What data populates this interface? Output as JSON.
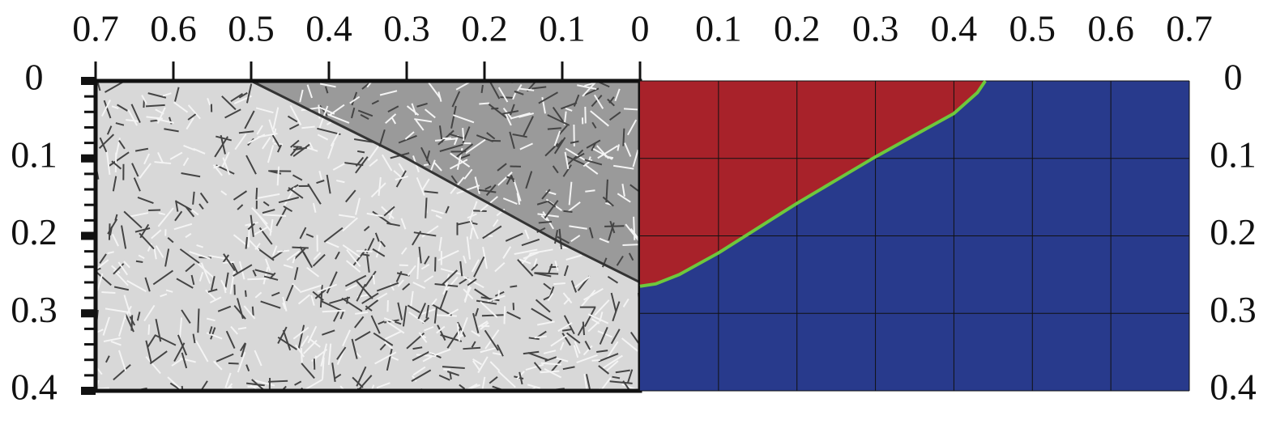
{
  "chart_data": [
    {
      "type": "micrograph",
      "xlim": [
        0.7,
        0
      ],
      "ylim": [
        0,
        0.4
      ],
      "xticks": [
        0.7,
        0.6,
        0.5,
        0.4,
        0.3,
        0.2,
        0.1,
        0
      ],
      "yticks": [
        0,
        0.1,
        0.2,
        0.3,
        0.4
      ],
      "yminor_ticks": [
        0.02,
        0.04,
        0.06,
        0.08,
        0.12,
        0.14,
        0.16,
        0.18,
        0.22,
        0.24,
        0.26,
        0.28,
        0.32,
        0.34,
        0.36,
        0.38
      ],
      "fusion_line": {
        "x": [
          0.5,
          0.4,
          0.3,
          0.2,
          0.1,
          0
        ],
        "y": [
          0,
          0.05,
          0.1,
          0.155,
          0.21,
          0.26
        ]
      }
    },
    {
      "type": "contour",
      "xlim": [
        0,
        0.7
      ],
      "ylim": [
        0,
        0.4
      ],
      "xticks": [
        0.1,
        0.2,
        0.3,
        0.4,
        0.5,
        0.6,
        0.7
      ],
      "yticks": [
        0,
        0.1,
        0.2,
        0.3,
        0.4
      ],
      "grid": true,
      "colors": {
        "inside": "#a8222a",
        "outside": "#283a8c",
        "edge": "#6ec83c"
      },
      "boundary": {
        "x": [
          0,
          0.02,
          0.05,
          0.1,
          0.15,
          0.2,
          0.25,
          0.3,
          0.35,
          0.4,
          0.43,
          0.44
        ],
        "y": [
          0.265,
          0.262,
          0.25,
          0.222,
          0.19,
          0.158,
          0.128,
          0.098,
          0.07,
          0.042,
          0.015,
          0
        ]
      }
    }
  ]
}
